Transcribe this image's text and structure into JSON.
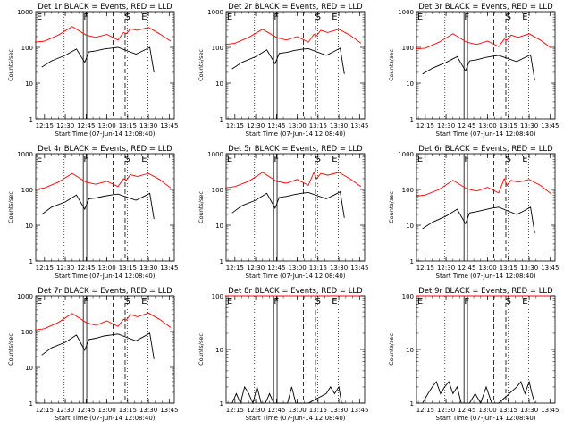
{
  "chart_data": [
    {
      "type": "line",
      "title": "Det 1r BLACK = Events, RED = LLD",
      "xlabel": "Start Time (07-Jun-14 12:08:40)",
      "ylabel": "Counts/sec",
      "y_scale": "log",
      "ylim": [
        1,
        1000
      ],
      "x_tick_labels": [
        "12:15",
        "12:30",
        "12:45",
        "13:00",
        "13:15",
        "13:30",
        "13:45"
      ],
      "y_tick_labels": [
        "1",
        "10",
        "100",
        "1000"
      ],
      "flags": [
        {
          "text": "E",
          "x": "12:10"
        },
        {
          "text": "F",
          "x": "12:45"
        },
        {
          "text": "S",
          "x": "13:15"
        },
        {
          "text": "E",
          "x": "13:27"
        }
      ],
      "series": [
        {
          "color": "#ff0000",
          "x": [
            "12:08",
            "12:15",
            "12:25",
            "12:35",
            "12:45",
            "12:52",
            "13:00",
            "13:08",
            "13:12",
            "13:14",
            "13:17",
            "13:22",
            "13:30",
            "13:38",
            "13:46"
          ],
          "values": [
            140,
            150,
            220,
            380,
            220,
            190,
            230,
            160,
            260,
            240,
            330,
            300,
            360,
            240,
            150
          ]
        },
        {
          "color": "#000000",
          "x": [
            "12:13",
            "12:20",
            "12:30",
            "12:38",
            "12:44",
            "12:47",
            "12:52",
            "12:58",
            "13:03",
            "13:08",
            "13:21",
            "13:26",
            "13:31",
            "13:34"
          ],
          "values": [
            28,
            42,
            60,
            90,
            38,
            75,
            80,
            90,
            95,
            100,
            65,
            80,
            100,
            20
          ]
        }
      ]
    },
    {
      "type": "line",
      "title": "Det 2r BLACK = Events, RED = LLD",
      "xlabel": "Start Time (07-Jun-14 12:08:40)",
      "ylabel": "Counts/sec",
      "y_scale": "log",
      "ylim": [
        1,
        1000
      ],
      "x_tick_labels": [
        "12:15",
        "12:30",
        "12:45",
        "13:00",
        "13:15",
        "13:30",
        "13:45"
      ],
      "y_tick_labels": [
        "1",
        "10",
        "100",
        "1000"
      ],
      "flags": [
        {
          "text": "E",
          "x": "12:10"
        },
        {
          "text": "F",
          "x": "12:45"
        },
        {
          "text": "S",
          "x": "13:15"
        },
        {
          "text": "E",
          "x": "13:27"
        }
      ],
      "series": [
        {
          "color": "#ff0000",
          "x": [
            "12:08",
            "12:15",
            "12:25",
            "12:35",
            "12:45",
            "12:52",
            "13:00",
            "13:08",
            "13:12",
            "13:14",
            "13:17",
            "13:22",
            "13:30",
            "13:38",
            "13:46"
          ],
          "values": [
            120,
            130,
            190,
            320,
            190,
            160,
            200,
            140,
            230,
            210,
            300,
            260,
            320,
            220,
            130
          ]
        },
        {
          "color": "#000000",
          "x": [
            "12:13",
            "12:20",
            "12:30",
            "12:38",
            "12:44",
            "12:47",
            "12:52",
            "12:58",
            "13:03",
            "13:08",
            "13:21",
            "13:26",
            "13:31",
            "13:34"
          ],
          "values": [
            25,
            38,
            55,
            85,
            35,
            68,
            72,
            82,
            88,
            92,
            60,
            75,
            95,
            18
          ]
        }
      ]
    },
    {
      "type": "line",
      "title": "Det 3r BLACK = Events, RED = LLD",
      "xlabel": "Start Time (07-Jun-14 12:08:40)",
      "ylabel": "Counts/sec",
      "y_scale": "log",
      "ylim": [
        1,
        1000
      ],
      "x_tick_labels": [
        "12:15",
        "12:30",
        "12:45",
        "13:00",
        "13:15",
        "13:30",
        "13:45"
      ],
      "y_tick_labels": [
        "1",
        "10",
        "100",
        "1000"
      ],
      "flags": [
        {
          "text": "E",
          "x": "12:10"
        },
        {
          "text": "F",
          "x": "12:45"
        },
        {
          "text": "S",
          "x": "13:15"
        },
        {
          "text": "E",
          "x": "13:27"
        }
      ],
      "series": [
        {
          "color": "#ff0000",
          "x": [
            "12:08",
            "12:15",
            "12:25",
            "12:35",
            "12:45",
            "12:52",
            "13:00",
            "13:08",
            "13:12",
            "13:14",
            "13:17",
            "13:22",
            "13:30",
            "13:38",
            "13:46"
          ],
          "values": [
            90,
            95,
            140,
            240,
            140,
            120,
            150,
            105,
            170,
            160,
            220,
            190,
            240,
            160,
            95
          ]
        },
        {
          "color": "#000000",
          "x": [
            "12:13",
            "12:20",
            "12:30",
            "12:38",
            "12:44",
            "12:47",
            "12:52",
            "12:58",
            "13:03",
            "13:08",
            "13:21",
            "13:26",
            "13:31",
            "13:34"
          ],
          "values": [
            18,
            26,
            38,
            55,
            22,
            42,
            45,
            52,
            56,
            60,
            40,
            50,
            62,
            12
          ]
        }
      ]
    },
    {
      "type": "line",
      "title": "Det 4r BLACK = Events, RED = LLD",
      "xlabel": "Start Time (07-Jun-14 12:08:40)",
      "ylabel": "Counts/sec",
      "y_scale": "log",
      "ylim": [
        1,
        1000
      ],
      "x_tick_labels": [
        "12:15",
        "12:30",
        "12:45",
        "13:00",
        "13:15",
        "13:30",
        "13:45"
      ],
      "y_tick_labels": [
        "1",
        "10",
        "100",
        "1000"
      ],
      "flags": [
        {
          "text": "E",
          "x": "12:10"
        },
        {
          "text": "F",
          "x": "12:45"
        },
        {
          "text": "S",
          "x": "13:15"
        },
        {
          "text": "E",
          "x": "13:27"
        }
      ],
      "series": [
        {
          "color": "#ff0000",
          "x": [
            "12:08",
            "12:15",
            "12:25",
            "12:35",
            "12:45",
            "12:52",
            "13:00",
            "13:08",
            "13:12",
            "13:14",
            "13:17",
            "13:22",
            "13:30",
            "13:38",
            "13:46"
          ],
          "values": [
            100,
            110,
            160,
            280,
            160,
            140,
            170,
            120,
            200,
            180,
            260,
            230,
            280,
            190,
            110
          ]
        },
        {
          "color": "#000000",
          "x": [
            "12:13",
            "12:20",
            "12:30",
            "12:38",
            "12:44",
            "12:47",
            "12:52",
            "12:58",
            "13:03",
            "13:08",
            "13:21",
            "13:26",
            "13:31",
            "13:34"
          ],
          "values": [
            20,
            32,
            45,
            70,
            28,
            55,
            58,
            65,
            70,
            74,
            50,
            62,
            78,
            15
          ]
        }
      ]
    },
    {
      "type": "line",
      "title": "Det 5r BLACK = Events, RED = LLD",
      "xlabel": "Start Time (07-Jun-14 12:08:40)",
      "ylabel": "Counts/sec",
      "y_scale": "log",
      "ylim": [
        1,
        1000
      ],
      "x_tick_labels": [
        "12:15",
        "12:30",
        "12:45",
        "13:00",
        "13:15",
        "13:30",
        "13:45"
      ],
      "y_tick_labels": [
        "1",
        "10",
        "100",
        "1000"
      ],
      "flags": [
        {
          "text": "E",
          "x": "12:10"
        },
        {
          "text": "F",
          "x": "12:45"
        },
        {
          "text": "S",
          "x": "13:15"
        },
        {
          "text": "E",
          "x": "13:27"
        }
      ],
      "series": [
        {
          "color": "#ff0000",
          "x": [
            "12:08",
            "12:15",
            "12:25",
            "12:35",
            "12:45",
            "12:52",
            "13:00",
            "13:08",
            "13:12",
            "13:14",
            "13:17",
            "13:22",
            "13:30",
            "13:38",
            "13:46"
          ],
          "values": [
            110,
            120,
            170,
            300,
            170,
            150,
            190,
            130,
            300,
            200,
            280,
            250,
            300,
            200,
            120
          ]
        },
        {
          "color": "#000000",
          "x": [
            "12:13",
            "12:20",
            "12:30",
            "12:38",
            "12:44",
            "12:47",
            "12:52",
            "12:58",
            "13:03",
            "13:08",
            "13:21",
            "13:26",
            "13:31",
            "13:34"
          ],
          "values": [
            22,
            35,
            50,
            78,
            30,
            60,
            64,
            72,
            78,
            82,
            55,
            68,
            86,
            16
          ]
        }
      ]
    },
    {
      "type": "line",
      "title": "Det 6r BLACK = Events, RED = LLD",
      "xlabel": "Start Time (07-Jun-14 12:08:40)",
      "ylabel": "Counts/sec",
      "y_scale": "log",
      "ylim": [
        1,
        1000
      ],
      "x_tick_labels": [
        "12:15",
        "12:30",
        "12:45",
        "13:00",
        "13:15",
        "13:30",
        "13:45"
      ],
      "y_tick_labels": [
        "1",
        "10",
        "100",
        "1000"
      ],
      "flags": [
        {
          "text": "E",
          "x": "12:10"
        },
        {
          "text": "F",
          "x": "12:45"
        },
        {
          "text": "S",
          "x": "13:15"
        },
        {
          "text": "E",
          "x": "13:27"
        }
      ],
      "series": [
        {
          "color": "#ff0000",
          "x": [
            "12:08",
            "12:15",
            "12:25",
            "12:35",
            "12:45",
            "12:52",
            "13:00",
            "13:08",
            "13:12",
            "13:14",
            "13:17",
            "13:22",
            "13:30",
            "13:38",
            "13:46"
          ],
          "values": [
            65,
            70,
            100,
            180,
            105,
            90,
            115,
            80,
            200,
            130,
            180,
            160,
            190,
            130,
            75
          ]
        },
        {
          "color": "#000000",
          "x": [
            "12:13",
            "12:20",
            "12:30",
            "12:38",
            "12:44",
            "12:47",
            "12:52",
            "12:58",
            "13:03",
            "13:08",
            "13:21",
            "13:26",
            "13:31",
            "13:34"
          ],
          "values": [
            8,
            12,
            18,
            28,
            11,
            22,
            24,
            27,
            30,
            32,
            20,
            25,
            32,
            6
          ]
        }
      ]
    },
    {
      "type": "line",
      "title": "Det 7r BLACK = Events, RED = LLD",
      "xlabel": "Start Time (07-Jun-14 12:08:40)",
      "ylabel": "Counts/sec",
      "y_scale": "log",
      "ylim": [
        1,
        1000
      ],
      "x_tick_labels": [
        "12:15",
        "12:30",
        "12:45",
        "13:00",
        "13:15",
        "13:30",
        "13:45"
      ],
      "y_tick_labels": [
        "1",
        "10",
        "100",
        "1000"
      ],
      "flags": [
        {
          "text": "E",
          "x": "12:10"
        },
        {
          "text": "F",
          "x": "12:45"
        },
        {
          "text": "S",
          "x": "13:15"
        },
        {
          "text": "E",
          "x": "13:27"
        }
      ],
      "series": [
        {
          "color": "#ff0000",
          "x": [
            "12:08",
            "12:15",
            "12:25",
            "12:35",
            "12:45",
            "12:52",
            "13:00",
            "13:08",
            "13:12",
            "13:14",
            "13:17",
            "13:22",
            "13:30",
            "13:38",
            "13:46"
          ],
          "values": [
            110,
            120,
            180,
            320,
            180,
            150,
            200,
            140,
            220,
            210,
            300,
            260,
            330,
            220,
            130
          ]
        },
        {
          "color": "#000000",
          "x": [
            "12:13",
            "12:20",
            "12:30",
            "12:38",
            "12:44",
            "12:47",
            "12:52",
            "12:58",
            "13:03",
            "13:08",
            "13:21",
            "13:26",
            "13:31",
            "13:34"
          ],
          "values": [
            22,
            35,
            50,
            80,
            30,
            60,
            65,
            75,
            80,
            85,
            55,
            70,
            90,
            17
          ]
        }
      ]
    },
    {
      "type": "line",
      "title": "Det 8r BLACK = Events, RED = LLD",
      "xlabel": "Start Time (07-Jun-14 12:08:40)",
      "ylabel": "Counts/sec",
      "y_scale": "log",
      "ylim": [
        1,
        100
      ],
      "x_tick_labels": [
        "12:15",
        "12:30",
        "12:45",
        "13:00",
        "13:15",
        "13:30",
        "13:45"
      ],
      "y_tick_labels": [
        "1",
        "10",
        "100"
      ],
      "flags": [
        {
          "text": "E",
          "x": "12:10"
        },
        {
          "text": "F",
          "x": "12:45"
        },
        {
          "text": "S",
          "x": "13:15"
        },
        {
          "text": "E",
          "x": "13:27"
        }
      ],
      "series": [
        {
          "color": "#ff0000",
          "x": [
            "12:08",
            "12:20",
            "12:35",
            "12:45",
            "13:00",
            "13:15",
            "13:30",
            "13:46"
          ],
          "values": [
            100,
            100,
            100,
            100,
            100,
            100,
            100,
            100
          ]
        },
        {
          "color": "#000000",
          "x": [
            "12:13",
            "12:16",
            "12:19",
            "12:22",
            "12:25",
            "12:28",
            "12:31",
            "12:34",
            "12:37",
            "12:40",
            "12:43",
            "12:47",
            "12:50",
            "12:53",
            "12:56",
            "12:59",
            "13:02",
            "13:05",
            "13:08",
            "13:21",
            "13:24",
            "13:27",
            "13:30",
            "13:32",
            "13:34"
          ],
          "values": [
            1,
            1.5,
            1,
            2,
            1.5,
            1,
            2,
            1,
            1,
            1.5,
            1,
            1,
            1,
            1,
            2,
            1,
            1,
            1,
            1,
            1.5,
            2,
            1.5,
            2,
            1,
            1
          ]
        }
      ]
    },
    {
      "type": "line",
      "title": "Det 9r BLACK = Events, RED = LLD",
      "xlabel": "Start Time (07-Jun-14 12:08:40)",
      "ylabel": "Counts/sec",
      "y_scale": "log",
      "ylim": [
        1,
        100
      ],
      "x_tick_labels": [
        "12:15",
        "12:30",
        "12:45",
        "13:00",
        "13:15",
        "13:30",
        "13:45"
      ],
      "y_tick_labels": [
        "1",
        "10",
        "100"
      ],
      "flags": [
        {
          "text": "E",
          "x": "12:10"
        },
        {
          "text": "F",
          "x": "12:45"
        },
        {
          "text": "S",
          "x": "13:15"
        },
        {
          "text": "E",
          "x": "13:27"
        }
      ],
      "series": [
        {
          "color": "#ff0000",
          "x": [
            "12:08",
            "12:20",
            "12:35",
            "12:45",
            "13:00",
            "13:15",
            "13:30",
            "13:46"
          ],
          "values": [
            100,
            100,
            100,
            100,
            100,
            100,
            100,
            100
          ]
        },
        {
          "color": "#000000",
          "x": [
            "12:13",
            "12:17",
            "12:20",
            "12:23",
            "12:26",
            "12:29",
            "12:32",
            "12:35",
            "12:38",
            "12:41",
            "12:43",
            "12:47",
            "12:51",
            "12:55",
            "12:59",
            "13:03",
            "13:06",
            "13:08",
            "13:21",
            "13:24",
            "13:27",
            "13:30",
            "13:32",
            "13:34"
          ],
          "values": [
            1,
            1.5,
            2,
            2.5,
            1.5,
            2,
            2.5,
            1.5,
            2,
            1,
            1,
            1,
            1.5,
            1,
            2,
            1,
            1,
            1,
            2,
            2.5,
            1.5,
            2.5,
            1.5,
            1
          ]
        }
      ]
    }
  ]
}
